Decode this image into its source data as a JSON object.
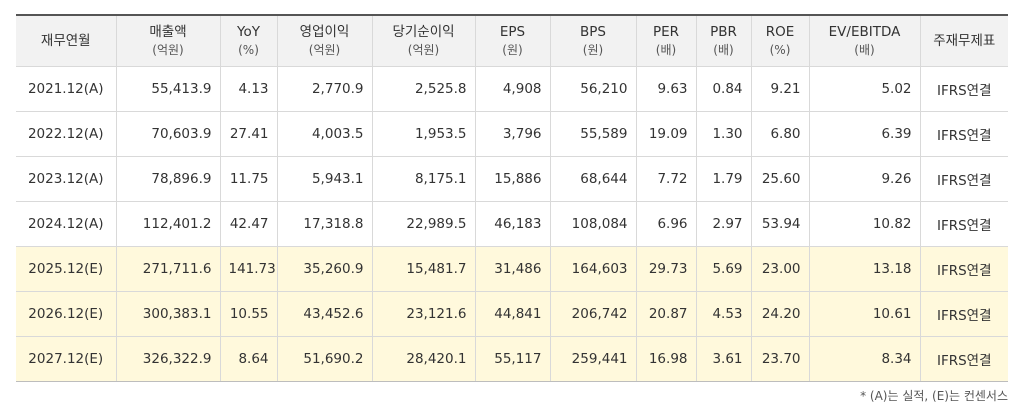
{
  "columns": [
    {
      "label": "재무연월",
      "unit": ""
    },
    {
      "label": "매출액",
      "unit": "(억원)"
    },
    {
      "label": "YoY",
      "unit": "(%)"
    },
    {
      "label": "영업이익",
      "unit": "(억원)"
    },
    {
      "label": "당기순이익",
      "unit": "(억원)"
    },
    {
      "label": "EPS",
      "unit": "(원)"
    },
    {
      "label": "BPS",
      "unit": "(원)"
    },
    {
      "label": "PER",
      "unit": "(배)"
    },
    {
      "label": "PBR",
      "unit": "(배)"
    },
    {
      "label": "ROE",
      "unit": "(%)"
    },
    {
      "label": "EV/EBITDA",
      "unit": "(배)"
    },
    {
      "label": "주재무제표",
      "unit": ""
    }
  ],
  "rows": [
    {
      "period": "2021.12(A)",
      "sales": "55,413.9",
      "yoy": "4.13",
      "op_income": "2,770.9",
      "net_income": "2,525.8",
      "eps": "4,908",
      "bps": "56,210",
      "per": "9.63",
      "pbr": "0.84",
      "roe": "9.21",
      "ev_ebitda": "5.02",
      "basis": "IFRS연결",
      "estimate": false
    },
    {
      "period": "2022.12(A)",
      "sales": "70,603.9",
      "yoy": "27.41",
      "op_income": "4,003.5",
      "net_income": "1,953.5",
      "eps": "3,796",
      "bps": "55,589",
      "per": "19.09",
      "pbr": "1.30",
      "roe": "6.80",
      "ev_ebitda": "6.39",
      "basis": "IFRS연결",
      "estimate": false
    },
    {
      "period": "2023.12(A)",
      "sales": "78,896.9",
      "yoy": "11.75",
      "op_income": "5,943.1",
      "net_income": "8,175.1",
      "eps": "15,886",
      "bps": "68,644",
      "per": "7.72",
      "pbr": "1.79",
      "roe": "25.60",
      "ev_ebitda": "9.26",
      "basis": "IFRS연결",
      "estimate": false
    },
    {
      "period": "2024.12(A)",
      "sales": "112,401.2",
      "yoy": "42.47",
      "op_income": "17,318.8",
      "net_income": "22,989.5",
      "eps": "46,183",
      "bps": "108,084",
      "per": "6.96",
      "pbr": "2.97",
      "roe": "53.94",
      "ev_ebitda": "10.82",
      "basis": "IFRS연결",
      "estimate": false
    },
    {
      "period": "2025.12(E)",
      "sales": "271,711.6",
      "yoy": "141.73",
      "op_income": "35,260.9",
      "net_income": "15,481.7",
      "eps": "31,486",
      "bps": "164,603",
      "per": "29.73",
      "pbr": "5.69",
      "roe": "23.00",
      "ev_ebitda": "13.18",
      "basis": "IFRS연결",
      "estimate": true
    },
    {
      "period": "2026.12(E)",
      "sales": "300,383.1",
      "yoy": "10.55",
      "op_income": "43,452.6",
      "net_income": "23,121.6",
      "eps": "44,841",
      "bps": "206,742",
      "per": "20.87",
      "pbr": "4.53",
      "roe": "24.20",
      "ev_ebitda": "10.61",
      "basis": "IFRS연결",
      "estimate": true
    },
    {
      "period": "2027.12(E)",
      "sales": "326,322.9",
      "yoy": "8.64",
      "op_income": "51,690.2",
      "net_income": "28,420.1",
      "eps": "55,117",
      "bps": "259,441",
      "per": "16.98",
      "pbr": "3.61",
      "roe": "23.70",
      "ev_ebitda": "8.34",
      "basis": "IFRS연결",
      "estimate": true
    }
  ],
  "footnote": "* (A)는 실적, (E)는 컨센서스",
  "colors": {
    "header_bg": "#f2f2f2",
    "estimate_bg": "#fff9dc",
    "border": "#d9d9d9",
    "top_rule": "#555555"
  }
}
